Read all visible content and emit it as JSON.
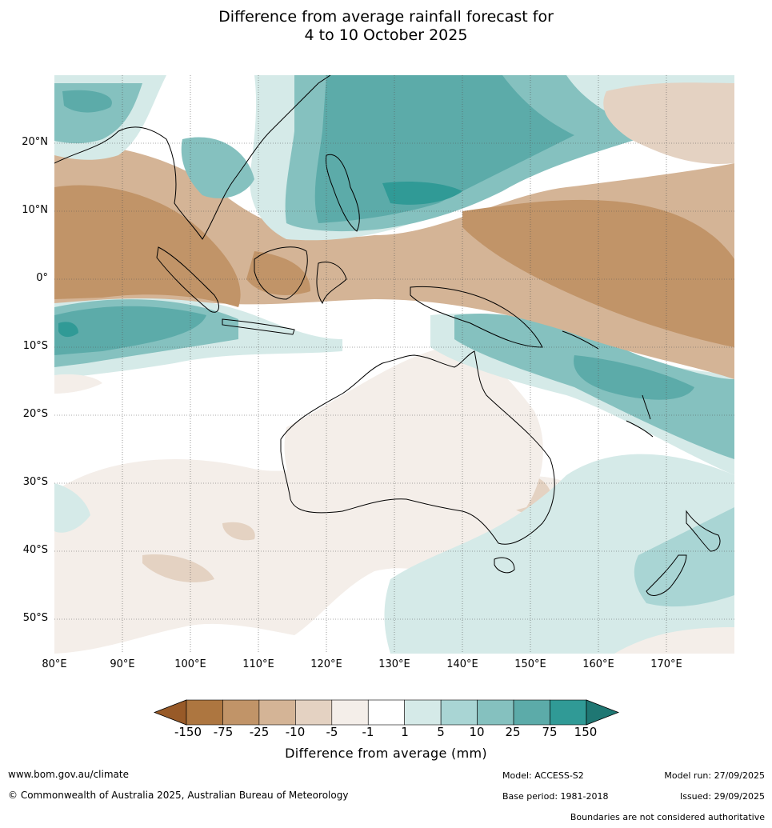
{
  "title_line1": "Difference from average rainfall forecast for",
  "title_line2": "4 to 10 October 2025",
  "lat_labels": [
    "20°N",
    "10°N",
    "0°",
    "10°S",
    "20°S",
    "30°S",
    "40°S",
    "50°S"
  ],
  "lon_labels": [
    "80°E",
    "90°E",
    "100°E",
    "110°E",
    "120°E",
    "130°E",
    "140°E",
    "150°E",
    "160°E",
    "170°E"
  ],
  "colorbar": {
    "title": "Difference from average (mm)",
    "ticks": [
      "-150",
      "-75",
      "-25",
      "-10",
      "-5",
      "-1",
      "1",
      "5",
      "10",
      "25",
      "75",
      "150"
    ],
    "colors": [
      "#985a28",
      "#ad7640",
      "#c19468",
      "#d4b496",
      "#e4d2c2",
      "#f4eee9",
      "#ffffff",
      "#d5eae8",
      "#a9d5d4",
      "#85c1bf",
      "#5caba9",
      "#309a96",
      "#1f7773"
    ]
  },
  "footer": {
    "url": "www.bom.gov.au/climate",
    "copyright": "© Commonwealth of Australia 2025, Australian Bureau of Meteorology",
    "model": "Model: ACCESS-S2",
    "base_period": "Base period: 1981-2018",
    "model_run": "Model run: 27/09/2025",
    "issued": "Issued: 29/09/2025",
    "disclaimer": "Boundaries are not considered authoritative"
  }
}
